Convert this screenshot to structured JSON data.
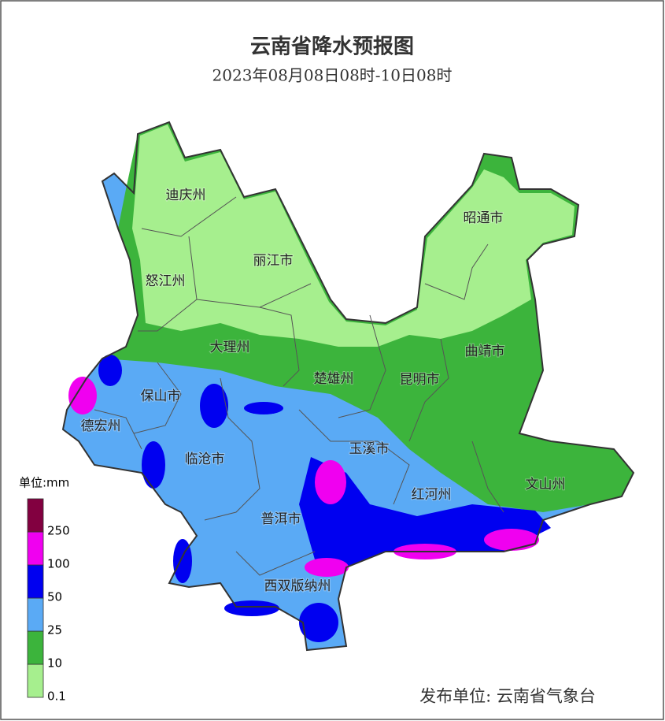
{
  "header": {
    "title": "云南省降水预报图",
    "subtitle": "2023年08月08日08时-10日08时"
  },
  "regions": [
    "迪庆州",
    "怒江州",
    "丽江市",
    "昭通市",
    "大理州",
    "曲靖市",
    "保山市",
    "楚雄州",
    "昆明市",
    "德宏州",
    "临沧市",
    "玉溪市",
    "普洱市",
    "红河州",
    "文山州",
    "西双版纳州"
  ],
  "legend": {
    "unit": "单位:mm",
    "levels": [
      {
        "value": 0.1,
        "color": "#a6ef8e"
      },
      {
        "value": 10,
        "color": "#3cb43c"
      },
      {
        "value": 25,
        "color": "#5aaaf5"
      },
      {
        "value": 50,
        "color": "#0000f0"
      },
      {
        "value": 100,
        "color": "#f000f0"
      },
      {
        "value": 250,
        "color": "#820040"
      }
    ]
  },
  "footer": {
    "publisher": "发布单位: 云南省气象台"
  }
}
